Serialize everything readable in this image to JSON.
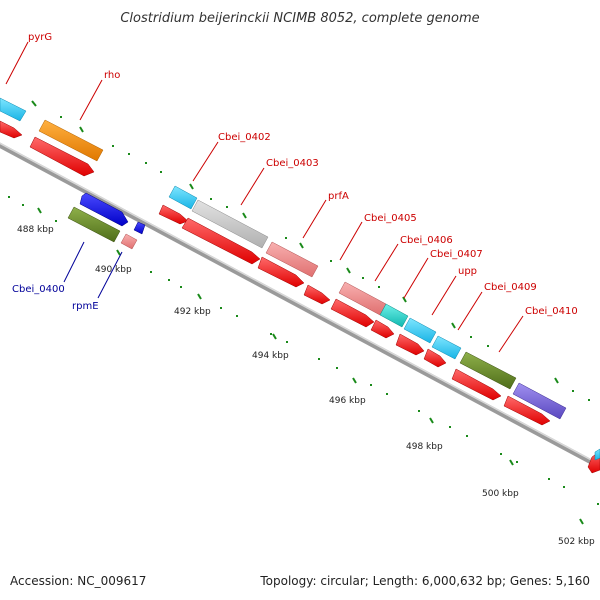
{
  "title": "Clostridium beijerinckii NCIMB 8052, complete genome",
  "accession": "Accession: NC_009617",
  "topology": "Topology: circular; Length: 6,000,632 bp; Genes: 5,160",
  "colors": {
    "cds_forward": "#ff1a1a",
    "cds_reverse": "#0000ff",
    "backbone": "#9a9a9a",
    "tick": "#1a8a1a",
    "label_red": "#cc0000",
    "label_blue": "#000099"
  },
  "kbp_labels": [
    "488 kbp",
    "490 kbp",
    "492 kbp",
    "494 kbp",
    "496 kbp",
    "498 kbp",
    "500 kbp",
    "502 kbp"
  ],
  "gene_labels": [
    {
      "name": "pyrG",
      "color": "red"
    },
    {
      "name": "rho",
      "color": "red"
    },
    {
      "name": "Cbei_0402",
      "color": "red"
    },
    {
      "name": "Cbei_0403",
      "color": "red"
    },
    {
      "name": "prfA",
      "color": "red"
    },
    {
      "name": "Cbei_0405",
      "color": "red"
    },
    {
      "name": "Cbei_0406",
      "color": "red"
    },
    {
      "name": "Cbei_0407",
      "color": "red"
    },
    {
      "name": "upp",
      "color": "red"
    },
    {
      "name": "Cbei_0409",
      "color": "red"
    },
    {
      "name": "Cbei_0410",
      "color": "red"
    },
    {
      "name": "Cbei_0400",
      "color": "blue"
    },
    {
      "name": "rpmE",
      "color": "blue"
    }
  ],
  "feature_colors": [
    "#29c9f2",
    "#ff8c00",
    "#c8c8c8",
    "#f08a8a",
    "#20d0c8",
    "#6b8e23",
    "#7b68d8",
    "#0000ff",
    "#ff1a1a"
  ]
}
